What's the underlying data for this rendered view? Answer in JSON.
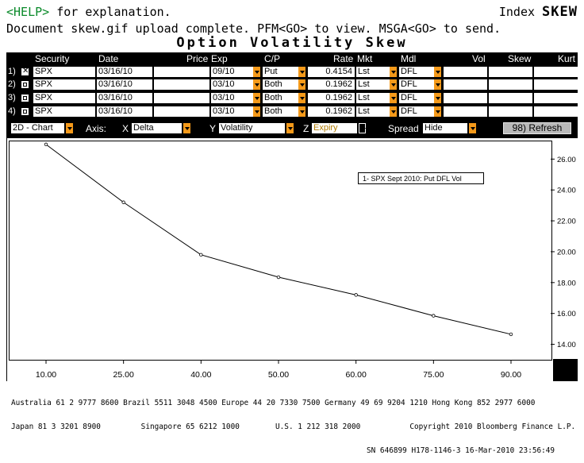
{
  "top_bar": {
    "help_key": "<HELP>",
    "help_text": " for explanation.",
    "index_label": "Index",
    "index_code": "SKEW",
    "status_message": "Document skew.gif upload complete. PFM<GO> to view. MSGA<GO> to send."
  },
  "screen_title": "Option Volatility Skew",
  "grid": {
    "headers": [
      "Security",
      "Date",
      "Price",
      "Exp",
      "C/P",
      "Rate",
      "Mkt",
      "Mdl",
      "Vol",
      "Skew",
      "Kurt"
    ],
    "rows": [
      {
        "num": "1)",
        "checked": true,
        "security": "SPX",
        "date": "03/16/10",
        "price": "",
        "exp": "09/10",
        "cp": "Put",
        "rate": "0.4154",
        "mkt": "Lst",
        "mdl": "DFL",
        "vol": "",
        "skew": "",
        "kurt": ""
      },
      {
        "num": "2)",
        "checked": false,
        "security": "SPX",
        "date": "03/16/10",
        "price": "",
        "exp": "03/10",
        "cp": "Both",
        "rate": "0.1962",
        "mkt": "Lst",
        "mdl": "DFL",
        "vol": "",
        "skew": "",
        "kurt": ""
      },
      {
        "num": "3)",
        "checked": false,
        "security": "SPX",
        "date": "03/16/10",
        "price": "",
        "exp": "03/10",
        "cp": "Both",
        "rate": "0.1962",
        "mkt": "Lst",
        "mdl": "DFL",
        "vol": "",
        "skew": "",
        "kurt": ""
      },
      {
        "num": "4)",
        "checked": false,
        "security": "SPX",
        "date": "03/16/10",
        "price": "",
        "exp": "03/10",
        "cp": "Both",
        "rate": "0.1962",
        "mkt": "Lst",
        "mdl": "DFL",
        "vol": "",
        "skew": "",
        "kurt": ""
      }
    ]
  },
  "controls": {
    "chart_mode": "2D - Chart",
    "axis_label": "Axis:",
    "x_label": "X",
    "x_value": "Delta",
    "y_label": "Y",
    "y_value": "Volatility",
    "z_label": "Z",
    "z_value": "Expiry",
    "spread_label": "Spread",
    "spread_value": "Hide",
    "refresh_label": "98) Refresh"
  },
  "chart_data": {
    "type": "line",
    "title": "",
    "xlabel": "",
    "ylabel": "",
    "x_ticks": [
      "10.00",
      "25.00",
      "40.00",
      "50.00",
      "60.00",
      "75.00",
      "90.00"
    ],
    "y_ticks": [
      "14.00",
      "16.00",
      "18.00",
      "20.00",
      "22.00",
      "24.00",
      "26.00"
    ],
    "ylim": [
      13.0,
      27.2
    ],
    "series": [
      {
        "name": "1- SPX Sept 2010: Put DFL Vol",
        "values": [
          26.95,
          23.2,
          19.8,
          18.35,
          17.2,
          15.85,
          14.65
        ]
      }
    ],
    "legend_position": "top-right",
    "grid": false,
    "colors": {
      "line": "#000000",
      "background": "#ffffff",
      "frame": "#000000"
    }
  },
  "footer": {
    "line1": "Australia 61 2 9777 8600 Brazil 5511 3048 4500 Europe 44 20 7330 7500 Germany 49 69 9204 1210 Hong Kong 852 2977 6000",
    "line2": "Japan 81 3 3201 8900         Singapore 65 6212 1000        U.S. 1 212 318 2000           Copyright 2010 Bloomberg Finance L.P.",
    "line3": "SN 646899 H178-1146-3 16-Mar-2010 23:56:49"
  }
}
